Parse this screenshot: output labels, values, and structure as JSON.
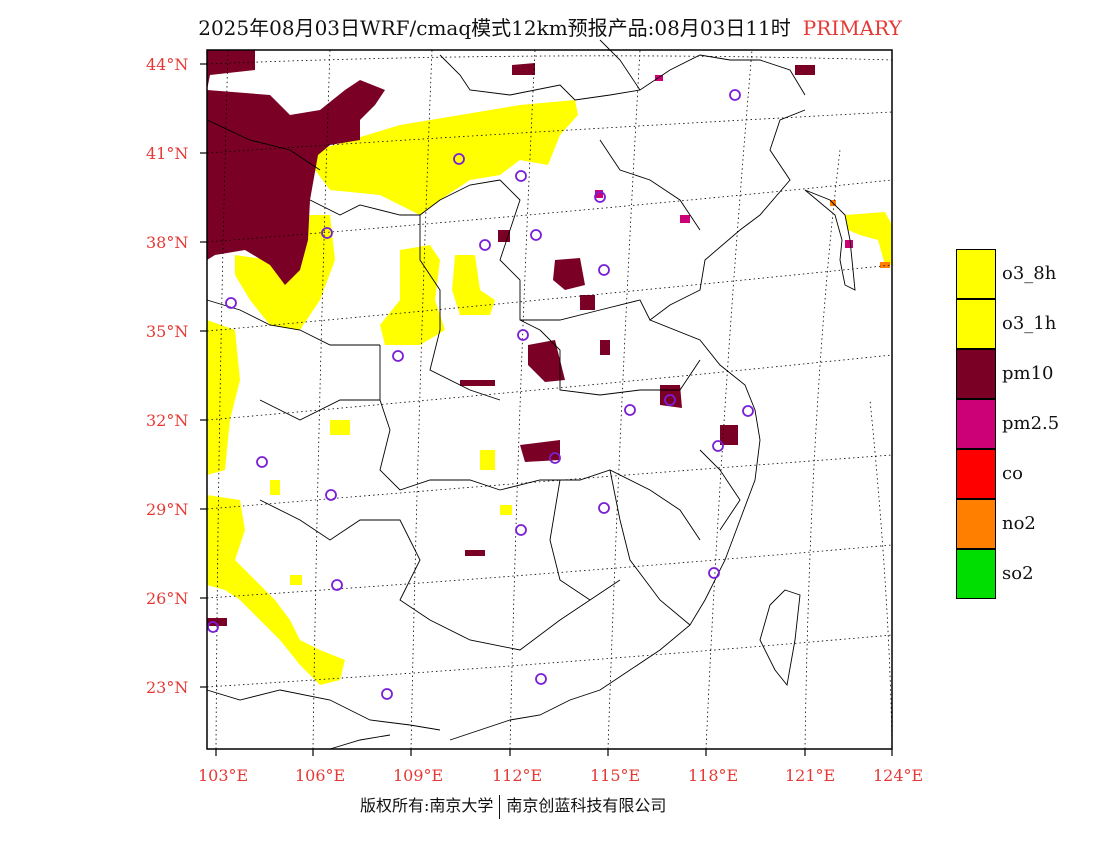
{
  "title": {
    "main": "2025年08月03日WRF/cmaq模式12km预报产品:08月03日11时",
    "tag": "PRIMARY"
  },
  "axes": {
    "lat_labels": [
      "44°N",
      "41°N",
      "38°N",
      "35°N",
      "32°N",
      "29°N",
      "26°N",
      "23°N"
    ],
    "lon_labels": [
      "103°E",
      "106°E",
      "109°E",
      "112°E",
      "115°E",
      "118°E",
      "121°E",
      "124°E"
    ]
  },
  "legend": [
    {
      "label": "o3_8h",
      "color": "#ffff00"
    },
    {
      "label": "o3_1h",
      "color": "#ffff00"
    },
    {
      "label": "pm10",
      "color": "#7b0026"
    },
    {
      "label": "pm2.5",
      "color": "#cc0077"
    },
    {
      "label": "co",
      "color": "#ff0000"
    },
    {
      "label": "no2",
      "color": "#ff7f00"
    },
    {
      "label": "so2",
      "color": "#00dd00"
    }
  ],
  "footer": {
    "left": "版权所有:南京大学",
    "right": "南京创蓝科技有限公司"
  },
  "colors": {
    "station_marker": "#7a1fd6",
    "axis_text": "#e53935"
  }
}
